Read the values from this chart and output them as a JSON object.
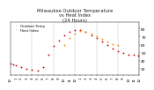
{
  "title": "Milwaukee Outdoor Temperature\nvs Heat Index\n(24 Hours)",
  "title_fontsize": 3.8,
  "background_color": "#ffffff",
  "grid_color": "#aaaaaa",
  "xlim": [
    0,
    24
  ],
  "ylim": [
    22,
    88
  ],
  "ytick_vals": [
    30,
    40,
    50,
    60,
    70,
    80
  ],
  "ytick_labels": [
    "30",
    "40",
    "50",
    "60",
    "70",
    "80"
  ],
  "ytick_fontsize": 3.2,
  "xtick_fontsize": 2.8,
  "xtick_positions": [
    0,
    1,
    2,
    3,
    4,
    5,
    6,
    7,
    8,
    9,
    10,
    11,
    12,
    13,
    14,
    15,
    16,
    17,
    18,
    19,
    20,
    21,
    22,
    23,
    24
  ],
  "xtick_labels": [
    "12",
    "1",
    "2",
    "3",
    "4",
    "5",
    "6",
    "7",
    "8",
    "9",
    "10",
    "11",
    "12",
    "1",
    "2",
    "3",
    "4",
    "5",
    "6",
    "7",
    "8",
    "9",
    "10",
    "11",
    "12"
  ],
  "vgrid_positions": [
    4,
    8,
    12,
    16,
    20,
    24
  ],
  "temp_x": [
    0,
    0.5,
    1,
    2,
    3,
    4,
    5,
    6,
    7,
    8,
    9,
    10,
    11,
    12,
    13,
    14,
    15,
    16,
    17,
    18,
    19,
    20,
    21,
    22,
    23,
    23.8
  ],
  "temp_y": [
    37,
    35,
    34,
    32,
    30,
    29,
    28,
    32,
    48,
    58,
    65,
    72,
    76,
    78,
    78,
    76,
    72,
    68,
    64,
    60,
    55,
    52,
    50,
    48,
    47,
    46
  ],
  "heat_x": [
    10,
    11,
    12,
    13,
    14,
    15,
    16,
    17,
    18,
    19,
    20
  ],
  "heat_y": [
    60,
    68,
    74,
    77,
    76,
    74,
    70,
    67,
    64,
    61,
    59
  ],
  "temp_color": "#cc0000",
  "heat_color": "#ff8800",
  "dot_size": 1.8,
  "legend_labels": [
    "Outdoor Temp",
    "Heat Index"
  ],
  "legend_fontsize": 2.8
}
